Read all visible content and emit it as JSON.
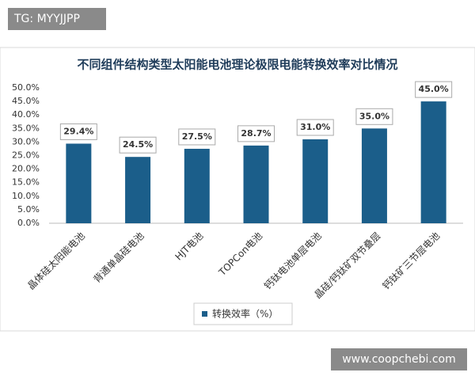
{
  "overlay_texts": [
    "TG: MYYJJPP",
    "www.coopchebi.com"
  ],
  "chart_data": {
    "type": "bar",
    "title": "不同组件结构类型太阳能电池理论极限电能转换效率对比情况",
    "categories": [
      "晶体硅太阳能电池",
      "背通单晶硅电池",
      "HJT电池",
      "TOPCon电池",
      "钙钛电池单层电池",
      "晶硅/钙钛矿双节叠层",
      "钙钛矿三节层电池"
    ],
    "series": [
      {
        "name": "转换效率（%）",
        "color": "#1b5e8a",
        "values": [
          29.4,
          24.5,
          27.5,
          28.7,
          31.0,
          35.0,
          45.0
        ],
        "value_labels": [
          "29.4%",
          "24.5%",
          "27.5%",
          "28.7%",
          "31.0%",
          "35.0%",
          "45.0%"
        ]
      }
    ],
    "ylim": [
      0,
      50
    ],
    "yticks": [
      {
        "value": 0,
        "label": "0.0%"
      },
      {
        "value": 5,
        "label": "5.0%"
      },
      {
        "value": 10,
        "label": "10.0%"
      },
      {
        "value": 15,
        "label": "15.0%"
      },
      {
        "value": 20,
        "label": "20.0%"
      },
      {
        "value": 25,
        "label": "25.0%"
      },
      {
        "value": 30,
        "label": "30.0%"
      },
      {
        "value": 35,
        "label": "35.0%"
      },
      {
        "value": 40,
        "label": "40.0%"
      },
      {
        "value": 45,
        "label": "45.0%"
      },
      {
        "value": 50,
        "label": "50.0%"
      }
    ],
    "grid": false,
    "legend": "bottom"
  }
}
